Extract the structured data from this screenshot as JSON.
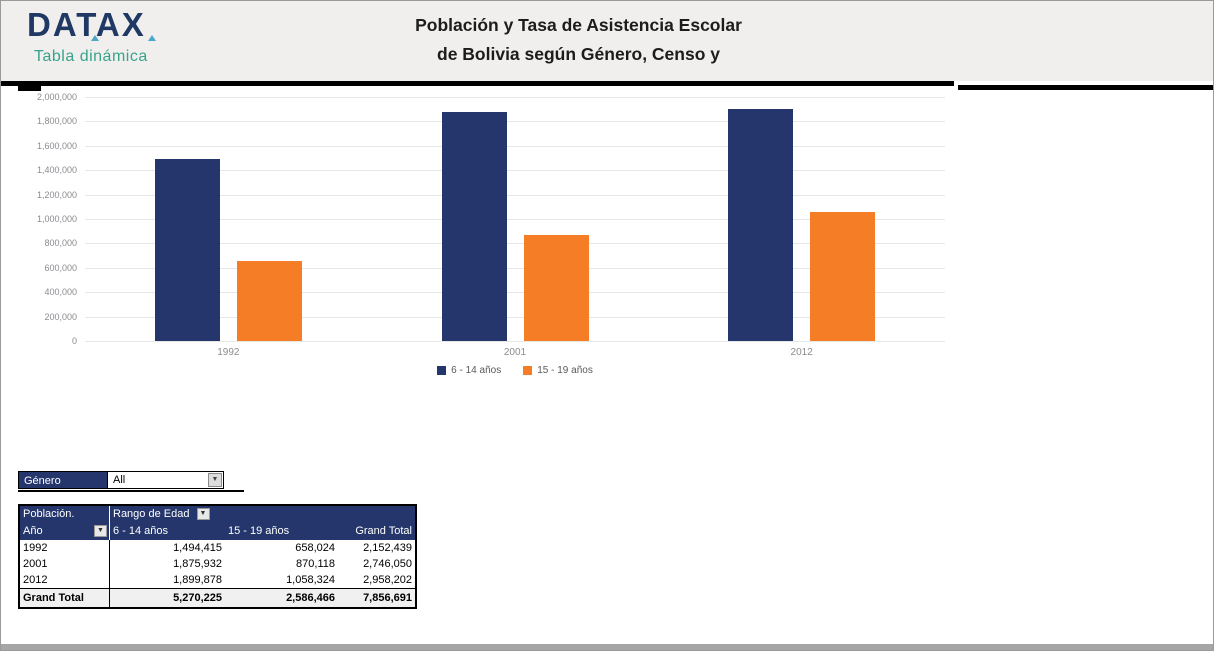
{
  "header": {
    "logo_title": "DATAX",
    "logo_subtitle": "Tabla dinámica",
    "title_line1": "Población y Tasa de Asistencia Escolar",
    "title_line2": "de Bolivia según Género, Censo y"
  },
  "colors": {
    "navy": "#24366b",
    "orange": "#f47d26",
    "header_bg": "#f1efed",
    "teal": "#38a38c",
    "gridline": "#e7e7e7",
    "axis_text": "#8b8b90",
    "total_row_bg": "#f0f0f0"
  },
  "chart_data": {
    "type": "bar",
    "categories": [
      "1992",
      "2001",
      "2012"
    ],
    "series": [
      {
        "name": "6 - 14 años",
        "color": "#24366b",
        "values": [
          1494415,
          1875932,
          1899878
        ]
      },
      {
        "name": "15 - 19 años",
        "color": "#f47d26",
        "values": [
          658024,
          870118,
          1058324
        ]
      }
    ],
    "title": "",
    "xlabel": "",
    "ylabel": "",
    "ylim": [
      0,
      2000000
    ],
    "ytick_step": 200000,
    "grid": true,
    "legend_position": "bottom"
  },
  "filter": {
    "label": "Género",
    "value": "All",
    "dropdown_icon": "▼"
  },
  "pivot": {
    "corner_label": "Población.",
    "row_field": "Año",
    "col_field": "Rango de Edad",
    "filter_icon": "▼",
    "col_headers": [
      "6 - 14 años",
      "15 - 19 años",
      "Grand Total"
    ],
    "rows": [
      {
        "label": "1992",
        "values": [
          "1,494,415",
          "658,024",
          "2,152,439"
        ]
      },
      {
        "label": "2001",
        "values": [
          "1,875,932",
          "870,118",
          "2,746,050"
        ]
      },
      {
        "label": "2012",
        "values": [
          "1,899,878",
          "1,058,324",
          "2,958,202"
        ]
      }
    ],
    "total": {
      "label": "Grand Total",
      "values": [
        "5,270,225",
        "2,586,466",
        "7,856,691"
      ]
    }
  }
}
